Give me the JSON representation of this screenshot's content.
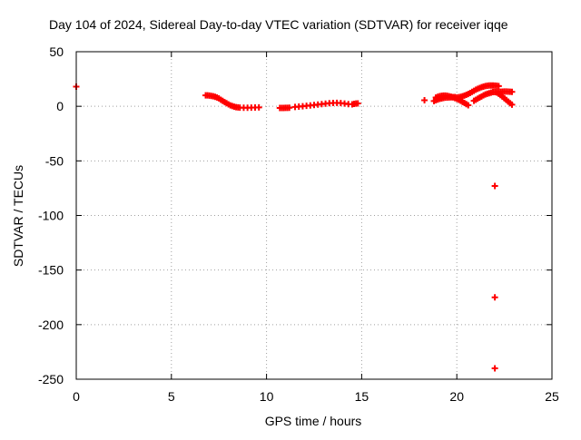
{
  "chart_data": {
    "type": "scatter",
    "title": "Day 104 of 2024, Sidereal Day-to-day VTEC variation (SDTVAR) for receiver iqqe",
    "xlabel": "GPS time / hours",
    "ylabel": "SDTVAR / TECUs",
    "xlim": [
      0,
      25
    ],
    "ylim": [
      -250,
      50
    ],
    "xticks": [
      0,
      5,
      10,
      15,
      20,
      25
    ],
    "yticks": [
      50,
      0,
      -50,
      -100,
      -150,
      -200,
      -250
    ],
    "grid": true,
    "marker": "plus",
    "color": "#ff0000",
    "series": [
      {
        "points": [
          [
            0.0,
            18
          ],
          [
            6.8,
            10
          ],
          [
            6.9,
            10
          ],
          [
            7.0,
            9.8
          ],
          [
            7.1,
            9.5
          ],
          [
            7.2,
            9.2
          ],
          [
            7.3,
            8.7
          ],
          [
            7.4,
            8.0
          ],
          [
            7.5,
            7.2
          ],
          [
            7.6,
            6.0
          ],
          [
            7.7,
            4.9
          ],
          [
            7.8,
            3.8
          ],
          [
            7.9,
            2.8
          ],
          [
            8.0,
            1.8
          ],
          [
            8.1,
            0.9
          ],
          [
            8.2,
            0.2
          ],
          [
            8.3,
            -0.4
          ],
          [
            8.4,
            -0.8
          ],
          [
            8.5,
            -1.0
          ],
          [
            8.6,
            -1.2
          ],
          [
            8.8,
            -1.3
          ],
          [
            9.0,
            -1.3
          ],
          [
            9.2,
            -1.2
          ],
          [
            9.4,
            -1.1
          ],
          [
            9.6,
            -1.0
          ],
          [
            10.7,
            -1.5
          ],
          [
            10.8,
            -1.5
          ],
          [
            10.9,
            -1.5
          ],
          [
            11.0,
            -1.4
          ],
          [
            11.1,
            -1.4
          ],
          [
            11.2,
            -1.3
          ],
          [
            11.5,
            -0.6
          ],
          [
            11.7,
            -0.3
          ],
          [
            11.9,
            0.0
          ],
          [
            12.1,
            0.4
          ],
          [
            12.3,
            0.8
          ],
          [
            12.5,
            1.2
          ],
          [
            12.7,
            1.6
          ],
          [
            12.9,
            2.0
          ],
          [
            13.1,
            2.4
          ],
          [
            13.3,
            2.8
          ],
          [
            13.5,
            3.0
          ],
          [
            13.7,
            3.1
          ],
          [
            13.9,
            2.9
          ],
          [
            14.1,
            2.5
          ],
          [
            14.3,
            2.0
          ],
          [
            14.5,
            1.8
          ],
          [
            14.6,
            2.2
          ],
          [
            14.7,
            2.5
          ],
          [
            14.8,
            2.6
          ],
          [
            18.3,
            5.5
          ],
          [
            18.8,
            4.8
          ],
          [
            18.9,
            5.5
          ],
          [
            19.0,
            6.2
          ],
          [
            19.1,
            6.8
          ],
          [
            19.2,
            7.2
          ],
          [
            19.3,
            7.6
          ],
          [
            19.4,
            7.9
          ],
          [
            19.5,
            8.0
          ],
          [
            19.6,
            8.1
          ],
          [
            19.7,
            8.2
          ],
          [
            19.8,
            8.3
          ],
          [
            19.9,
            8.5
          ],
          [
            18.9,
            8.0
          ],
          [
            19.0,
            8.8
          ],
          [
            19.1,
            9.3
          ],
          [
            19.2,
            9.6
          ],
          [
            19.3,
            9.8
          ],
          [
            19.4,
            9.8
          ],
          [
            19.5,
            9.6
          ],
          [
            19.6,
            9.2
          ],
          [
            19.7,
            8.8
          ],
          [
            19.8,
            8.2
          ],
          [
            19.9,
            7.5
          ],
          [
            20.0,
            6.8
          ],
          [
            20.1,
            6.0
          ],
          [
            20.2,
            5.0
          ],
          [
            20.3,
            4.0
          ],
          [
            20.4,
            3.0
          ],
          [
            20.5,
            2.0
          ],
          [
            20.6,
            1.0
          ],
          [
            20.0,
            8.0
          ],
          [
            20.1,
            8.3
          ],
          [
            20.2,
            8.7
          ],
          [
            20.3,
            9.2
          ],
          [
            20.4,
            9.8
          ],
          [
            20.5,
            10.5
          ],
          [
            20.6,
            11.3
          ],
          [
            20.7,
            12.2
          ],
          [
            20.8,
            13.2
          ],
          [
            20.9,
            14.2
          ],
          [
            21.0,
            15.2
          ],
          [
            21.1,
            16.0
          ],
          [
            21.2,
            16.8
          ],
          [
            21.3,
            17.5
          ],
          [
            21.4,
            18.0
          ],
          [
            21.5,
            18.5
          ],
          [
            21.6,
            18.8
          ],
          [
            21.7,
            19.0
          ],
          [
            21.8,
            19.0
          ],
          [
            21.9,
            19.0
          ],
          [
            22.0,
            18.9
          ],
          [
            22.1,
            18.8
          ],
          [
            22.2,
            18.5
          ],
          [
            20.9,
            5.0
          ],
          [
            21.0,
            6.0
          ],
          [
            21.1,
            7.0
          ],
          [
            21.2,
            8.0
          ],
          [
            21.3,
            9.0
          ],
          [
            21.4,
            10.0
          ],
          [
            21.5,
            10.8
          ],
          [
            21.6,
            11.5
          ],
          [
            21.7,
            12.0
          ],
          [
            21.8,
            12.5
          ],
          [
            21.9,
            13.0
          ],
          [
            22.0,
            13.0
          ],
          [
            22.1,
            12.6
          ],
          [
            22.2,
            11.5
          ],
          [
            22.3,
            10.2
          ],
          [
            22.4,
            8.8
          ],
          [
            22.5,
            7.3
          ],
          [
            22.6,
            5.8
          ],
          [
            22.7,
            4.3
          ],
          [
            22.8,
            2.8
          ],
          [
            22.9,
            1.5
          ],
          [
            22.1,
            13.0
          ],
          [
            22.2,
            13.2
          ],
          [
            22.3,
            13.3
          ],
          [
            22.4,
            13.4
          ],
          [
            22.5,
            13.5
          ],
          [
            22.6,
            13.5
          ],
          [
            22.7,
            13.4
          ],
          [
            22.8,
            13.3
          ],
          [
            22.9,
            13.2
          ],
          [
            22.0,
            -73
          ],
          [
            22.0,
            -175
          ],
          [
            22.0,
            -240
          ]
        ]
      }
    ]
  }
}
